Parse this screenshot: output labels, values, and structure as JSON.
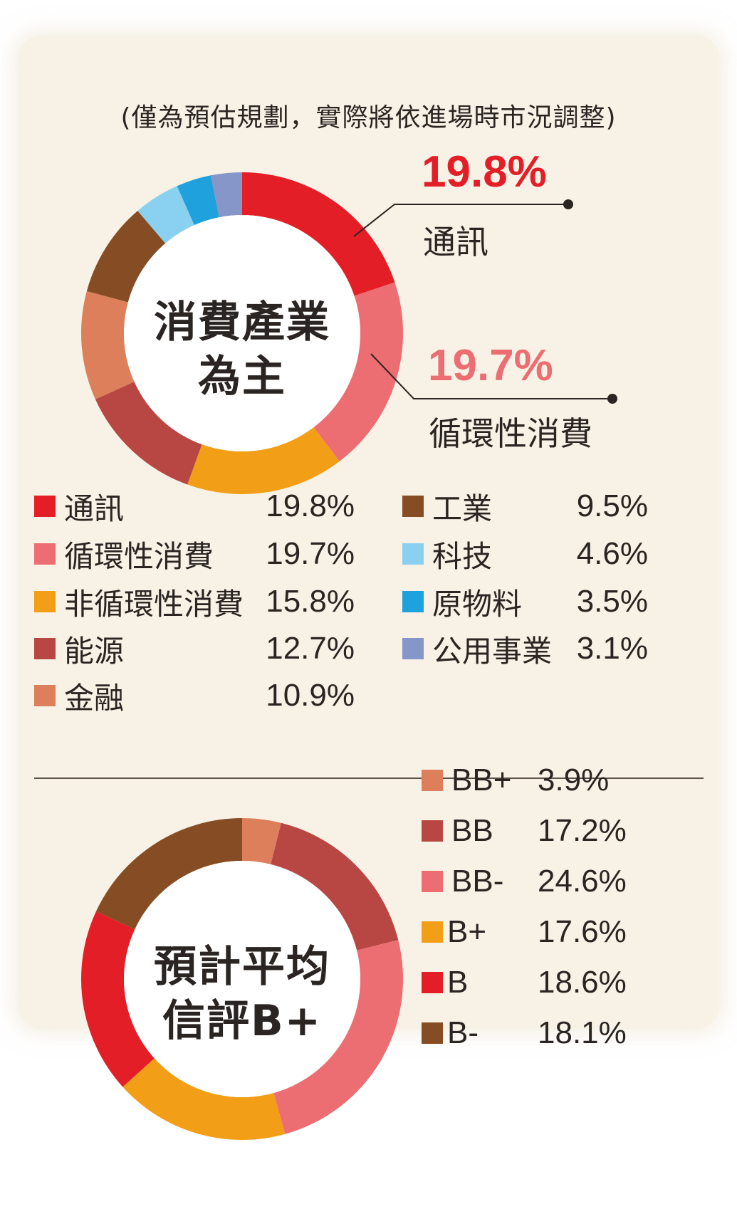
{
  "note": "(僅為預估規劃，實際將依進場時市況調整)",
  "chart_data": [
    {
      "type": "pie",
      "style": "donut",
      "center_label": [
        "消費產業",
        "為主"
      ],
      "series": [
        {
          "name": "通訊",
          "value": 19.8,
          "label": "19.8%",
          "color": "#e31e26"
        },
        {
          "name": "循環性消費",
          "value": 19.7,
          "label": "19.7%",
          "color": "#ec6d72"
        },
        {
          "name": "非循環性消費",
          "value": 15.8,
          "label": "15.8%",
          "color": "#f39e17"
        },
        {
          "name": "能源",
          "value": 12.7,
          "label": "12.7%",
          "color": "#b84744"
        },
        {
          "name": "金融",
          "value": 10.9,
          "label": "10.9%",
          "color": "#dc7f5a"
        },
        {
          "name": "工業",
          "value": 9.5,
          "label": "9.5%",
          "color": "#864d24"
        },
        {
          "name": "科技",
          "value": 4.6,
          "label": "4.6%",
          "color": "#8ad0f0"
        },
        {
          "name": "原物料",
          "value": 3.5,
          "label": "3.5%",
          "color": "#1ea1dc"
        },
        {
          "name": "公用事業",
          "value": 3.1,
          "label": "3.1%",
          "color": "#8696c8"
        }
      ],
      "callouts": [
        {
          "pct": "19.8%",
          "name": "通訊",
          "color": "#e31e26"
        },
        {
          "pct": "19.7%",
          "name": "循環性消費",
          "color": "#ec6d72"
        }
      ]
    },
    {
      "type": "pie",
      "style": "donut",
      "center_label": [
        "預計平均",
        "信評B+"
      ],
      "series": [
        {
          "name": "BB+",
          "value": 3.9,
          "label": "3.9%",
          "color": "#dc7f5a"
        },
        {
          "name": "BB",
          "value": 17.2,
          "label": "17.2%",
          "color": "#b84744"
        },
        {
          "name": "BB-",
          "value": 24.6,
          "label": "24.6%",
          "color": "#ec6d72"
        },
        {
          "name": "B+",
          "value": 17.6,
          "label": "17.6%",
          "color": "#f39e17"
        },
        {
          "name": "B",
          "value": 18.6,
          "label": "18.6%",
          "color": "#e31e26"
        },
        {
          "name": "B-",
          "value": 18.1,
          "label": "18.1%",
          "color": "#864d24"
        }
      ]
    }
  ]
}
